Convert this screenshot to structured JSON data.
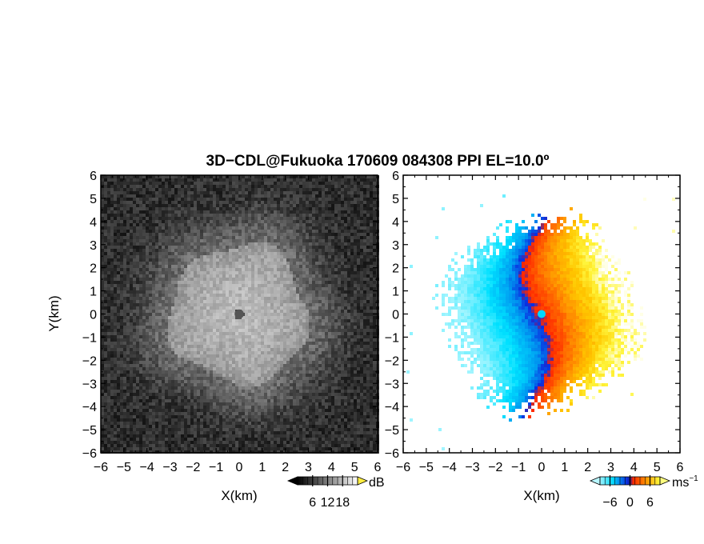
{
  "chart_data": [
    {
      "type": "heatmap",
      "title": "3D−CDL@Fukuoka 170609 084308 PPI EL=10.0º",
      "xlabel": "X(km)",
      "ylabel": "Y(km)",
      "xlim": [
        -6,
        6
      ],
      "ylim": [
        -6,
        6
      ],
      "x_ticks": [
        "−6",
        "−5",
        "−4",
        "−3",
        "−2",
        "−1",
        "0",
        "1",
        "2",
        "3",
        "4",
        "5",
        "6"
      ],
      "y_ticks": [
        "6",
        "5",
        "4",
        "3",
        "2",
        "1",
        "0",
        "−1",
        "−2",
        "−3",
        "−4",
        "−5",
        "−6"
      ],
      "colorbar": {
        "label": "dB",
        "ticks": [
          "6",
          "12",
          "18"
        ],
        "range": [
          0,
          24
        ],
        "colormap": "grayscale"
      },
      "field": "signal-to-noise ratio",
      "echo_radius_km": 3,
      "center_gap_radius_km": 0.2
    },
    {
      "type": "heatmap",
      "xlabel": "X(km)",
      "xlim": [
        -6,
        6
      ],
      "ylim": [
        -6,
        6
      ],
      "x_ticks": [
        "−6",
        "−5",
        "−4",
        "−3",
        "−2",
        "−1",
        "0",
        "1",
        "2",
        "3",
        "4",
        "5",
        "6"
      ],
      "y_ticks": [
        "6",
        "5",
        "4",
        "3",
        "2",
        "1",
        "0",
        "−1",
        "−2",
        "−3",
        "−4",
        "−5",
        "−6"
      ],
      "colorbar": {
        "label": "ms",
        "label_exponent": "−1",
        "ticks": [
          "−6",
          "0",
          "6"
        ],
        "range": [
          -9,
          9
        ],
        "colormap": "cyan-blue-red-orange-yellow"
      },
      "field": "Doppler radial velocity",
      "negative_side": "west",
      "positive_side": "east",
      "echo_radius_km": 4.1
    }
  ],
  "colors": {
    "frame": "#000000",
    "gray_background": "#2d2d2d",
    "gray_echo": "#b8b8b8",
    "vel_cyan": "#00e8ff",
    "vel_blue": "#0a35e0",
    "vel_red": "#ff3b00",
    "vel_orange": "#ff9a00",
    "vel_yellow": "#ffee10",
    "vel_white": "#ffffff"
  }
}
